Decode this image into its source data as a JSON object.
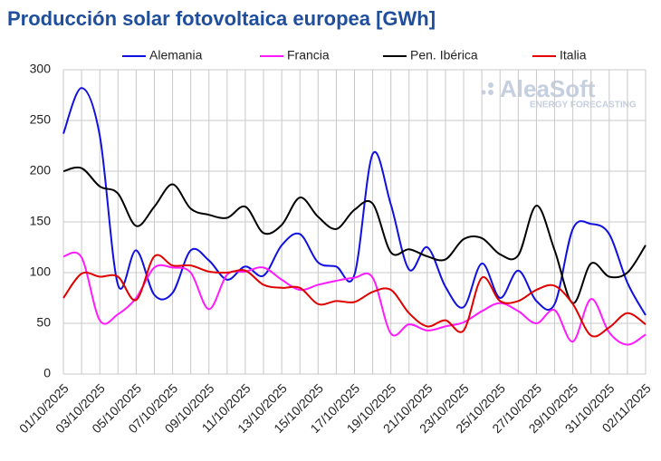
{
  "chart_data": {
    "type": "line",
    "title": "Producción solar fotovoltaica europea [GWh]",
    "watermark": {
      "name": "AleaSoft",
      "tagline": "ENERGY FORECASTING"
    },
    "categories": [
      "01/10/2025",
      null,
      "03/10/2025",
      null,
      "05/10/2025",
      null,
      "07/10/2025",
      null,
      "09/10/2025",
      null,
      "11/10/2025",
      null,
      "13/10/2025",
      null,
      "15/10/2025",
      null,
      "17/10/2025",
      null,
      "19/10/2025",
      null,
      "21/10/2025",
      null,
      "23/10/2025",
      null,
      "25/10/2025",
      null,
      "27/10/2025",
      null,
      "29/10/2025",
      null,
      "31/10/2025",
      null,
      "02/11/2025"
    ],
    "ylim": [
      0,
      300
    ],
    "yticks": [
      0,
      50,
      100,
      150,
      200,
      250,
      300
    ],
    "grid": true,
    "smooth": true,
    "series": [
      {
        "name": "Alemania",
        "color": "#1010e0",
        "values": [
          237,
          282,
          235,
          88,
          122,
          78,
          80,
          122,
          112,
          93,
          106,
          97,
          127,
          138,
          110,
          106,
          98,
          217,
          167,
          103,
          125,
          86,
          66,
          109,
          75,
          102,
          72,
          69,
          143,
          148,
          138,
          90,
          58
        ]
      },
      {
        "name": "Francia",
        "color": "#ff1aff",
        "values": [
          116,
          115,
          53,
          59,
          75,
          105,
          105,
          100,
          64,
          98,
          101,
          105,
          93,
          83,
          88,
          92,
          95,
          95,
          40,
          49,
          43,
          47,
          51,
          62,
          70,
          62,
          50,
          63,
          32,
          74,
          41,
          29,
          39
        ]
      },
      {
        "name": "Pen. Ibérica",
        "color": "#000000",
        "values": [
          200,
          203,
          185,
          178,
          146,
          165,
          187,
          163,
          157,
          154,
          165,
          139,
          147,
          174,
          155,
          143,
          162,
          168,
          120,
          123,
          116,
          113,
          133,
          134,
          118,
          117,
          166,
          122,
          70,
          109,
          96,
          100,
          127
        ]
      },
      {
        "name": "Italia",
        "color": "#e00000",
        "values": [
          75,
          99,
          96,
          96,
          73,
          116,
          107,
          107,
          101,
          100,
          102,
          88,
          85,
          85,
          69,
          72,
          71,
          81,
          83,
          60,
          47,
          53,
          43,
          95,
          72,
          72,
          83,
          87,
          69,
          38,
          46,
          60,
          49
        ]
      }
    ]
  }
}
